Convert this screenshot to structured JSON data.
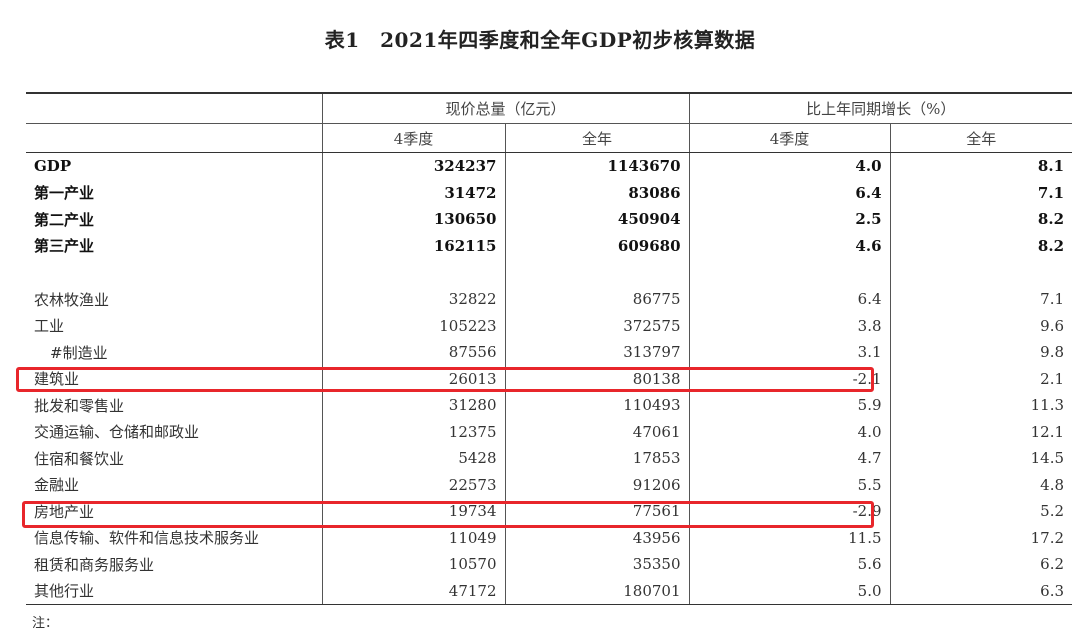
{
  "title": "表1　2021年四季度和全年GDP初步核算数据",
  "header": {
    "group_a": "现价总量（亿元）",
    "group_b": "比上年同期增长（%）",
    "sub": [
      "4季度",
      "全年",
      "4季度",
      "全年"
    ]
  },
  "rows_top": [
    {
      "label": "GDP",
      "q4": "324237",
      "year": "1143670",
      "g_q4": "4.0",
      "g_year": "8.1"
    },
    {
      "label": "第一产业",
      "q4": "31472",
      "year": "83086",
      "g_q4": "6.4",
      "g_year": "7.1"
    },
    {
      "label": "第二产业",
      "q4": "130650",
      "year": "450904",
      "g_q4": "2.5",
      "g_year": "8.2"
    },
    {
      "label": "第三产业",
      "q4": "162115",
      "year": "609680",
      "g_q4": "4.6",
      "g_year": "8.2"
    }
  ],
  "rows_detail": [
    {
      "label": "农林牧渔业",
      "q4": "32822",
      "year": "86775",
      "g_q4": "6.4",
      "g_year": "7.1"
    },
    {
      "label": "工业",
      "q4": "105223",
      "year": "372575",
      "g_q4": "3.8",
      "g_year": "9.6"
    },
    {
      "label": "#制造业",
      "q4": "87556",
      "year": "313797",
      "g_q4": "3.1",
      "g_year": "9.8"
    },
    {
      "label": "建筑业",
      "q4": "26013",
      "year": "80138",
      "g_q4": "-2.1",
      "g_year": "2.1"
    },
    {
      "label": "批发和零售业",
      "q4": "31280",
      "year": "110493",
      "g_q4": "5.9",
      "g_year": "11.3"
    },
    {
      "label": "交通运输、仓储和邮政业",
      "q4": "12375",
      "year": "47061",
      "g_q4": "4.0",
      "g_year": "12.1"
    },
    {
      "label": "住宿和餐饮业",
      "q4": "5428",
      "year": "17853",
      "g_q4": "4.7",
      "g_year": "14.5"
    },
    {
      "label": "金融业",
      "q4": "22573",
      "year": "91206",
      "g_q4": "5.5",
      "g_year": "4.8"
    },
    {
      "label": "房地产业",
      "q4": "19734",
      "year": "77561",
      "g_q4": "-2.9",
      "g_year": "5.2"
    },
    {
      "label": "信息传输、软件和信息技术服务业",
      "q4": "11049",
      "year": "43956",
      "g_q4": "11.5",
      "g_year": "17.2"
    },
    {
      "label": "租赁和商务服务业",
      "q4": "10570",
      "year": "35350",
      "g_q4": "5.6",
      "g_year": "6.2"
    },
    {
      "label": "其他行业",
      "q4": "47172",
      "year": "180701",
      "g_q4": "5.0",
      "g_year": "6.3"
    }
  ],
  "note": "注：",
  "highlight_color": "#e8262b"
}
